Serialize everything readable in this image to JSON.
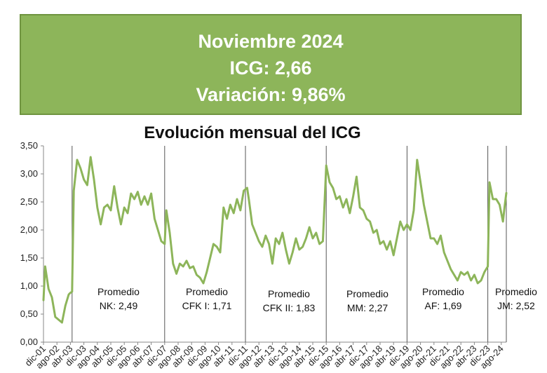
{
  "banner": {
    "line1": "Noviembre 2024",
    "line2": "ICG: 2,66",
    "line3": "Variación: 9,86%"
  },
  "colors": {
    "banner_bg": "#8db55a",
    "line": "#8db55a"
  },
  "chart_data": {
    "type": "line",
    "title": "Evolución mensual del ICG",
    "xlabel": "",
    "ylabel": "",
    "ylim": [
      0,
      3.5
    ],
    "grid": "vertical separators only",
    "y_ticks": [
      "0,00",
      "0,50",
      "1,00",
      "1,50",
      "2,00",
      "2,50",
      "3,00",
      "3,50"
    ],
    "x_range": [
      "2001-12",
      "2024-11"
    ],
    "x_tick_labels": [
      "dic-01",
      "ago-02",
      "abr-03",
      "dic-03",
      "ago-04",
      "abr-05",
      "dic-05",
      "ago-06",
      "abr-07",
      "dic-07",
      "ago-08",
      "abr-09",
      "dic-09",
      "ago-10",
      "abr-11",
      "dic-11",
      "ago-12",
      "abr-13",
      "dic-13",
      "ago-14",
      "abr-15",
      "dic-15",
      "ago-16",
      "abr-17",
      "dic-17",
      "ago-18",
      "abr-19",
      "dic-19",
      "ago-20",
      "abr-21",
      "dic-21",
      "ago-22",
      "abr-23",
      "dic-23",
      "ago-24"
    ],
    "separators": [
      "2003-05",
      "2007-12",
      "2011-12",
      "2015-12",
      "2019-12",
      "2023-12"
    ],
    "series": [
      {
        "values_keypoints": [
          [
            "2001-12",
            0.75
          ],
          [
            "2002-01",
            1.35
          ],
          [
            "2002-03",
            0.95
          ],
          [
            "2002-05",
            0.8
          ],
          [
            "2002-07",
            0.45
          ],
          [
            "2002-09",
            0.4
          ],
          [
            "2002-11",
            0.35
          ],
          [
            "2003-01",
            0.65
          ],
          [
            "2003-03",
            0.85
          ],
          [
            "2003-04",
            0.88
          ],
          [
            "2003-05",
            0.9
          ],
          [
            "2003-06",
            2.7
          ],
          [
            "2003-08",
            3.25
          ],
          [
            "2003-10",
            3.1
          ],
          [
            "2003-12",
            2.9
          ],
          [
            "2004-02",
            2.8
          ],
          [
            "2004-04",
            3.3
          ],
          [
            "2004-06",
            2.9
          ],
          [
            "2004-08",
            2.4
          ],
          [
            "2004-10",
            2.1
          ],
          [
            "2004-12",
            2.4
          ],
          [
            "2005-02",
            2.45
          ],
          [
            "2005-04",
            2.35
          ],
          [
            "2005-06",
            2.78
          ],
          [
            "2005-08",
            2.4
          ],
          [
            "2005-10",
            2.1
          ],
          [
            "2005-12",
            2.4
          ],
          [
            "2006-02",
            2.3
          ],
          [
            "2006-04",
            2.65
          ],
          [
            "2006-06",
            2.55
          ],
          [
            "2006-08",
            2.68
          ],
          [
            "2006-10",
            2.45
          ],
          [
            "2006-12",
            2.6
          ],
          [
            "2007-02",
            2.45
          ],
          [
            "2007-04",
            2.65
          ],
          [
            "2007-06",
            2.2
          ],
          [
            "2007-08",
            2.0
          ],
          [
            "2007-10",
            1.8
          ],
          [
            "2007-12",
            1.75
          ],
          [
            "2008-01",
            2.35
          ],
          [
            "2008-03",
            1.95
          ],
          [
            "2008-05",
            1.4
          ],
          [
            "2008-07",
            1.22
          ],
          [
            "2008-09",
            1.4
          ],
          [
            "2008-11",
            1.35
          ],
          [
            "2009-01",
            1.45
          ],
          [
            "2009-03",
            1.32
          ],
          [
            "2009-05",
            1.35
          ],
          [
            "2009-07",
            1.2
          ],
          [
            "2009-09",
            1.15
          ],
          [
            "2009-11",
            1.05
          ],
          [
            "2010-01",
            1.25
          ],
          [
            "2010-03",
            1.5
          ],
          [
            "2010-05",
            1.75
          ],
          [
            "2010-07",
            1.7
          ],
          [
            "2010-09",
            1.6
          ],
          [
            "2010-11",
            2.4
          ],
          [
            "2011-01",
            2.2
          ],
          [
            "2011-03",
            2.45
          ],
          [
            "2011-05",
            2.3
          ],
          [
            "2011-07",
            2.55
          ],
          [
            "2011-09",
            2.35
          ],
          [
            "2011-11",
            2.7
          ],
          [
            "2012-01",
            2.75
          ],
          [
            "2012-02",
            2.55
          ],
          [
            "2012-04",
            2.1
          ],
          [
            "2012-06",
            1.95
          ],
          [
            "2012-08",
            1.8
          ],
          [
            "2012-10",
            1.7
          ],
          [
            "2012-12",
            1.9
          ],
          [
            "2013-02",
            1.75
          ],
          [
            "2013-04",
            1.4
          ],
          [
            "2013-06",
            1.85
          ],
          [
            "2013-08",
            1.75
          ],
          [
            "2013-10",
            1.95
          ],
          [
            "2013-12",
            1.65
          ],
          [
            "2014-02",
            1.4
          ],
          [
            "2014-04",
            1.6
          ],
          [
            "2014-06",
            1.85
          ],
          [
            "2014-08",
            1.65
          ],
          [
            "2014-10",
            1.7
          ],
          [
            "2014-12",
            1.85
          ],
          [
            "2015-02",
            2.05
          ],
          [
            "2015-04",
            1.85
          ],
          [
            "2015-06",
            1.95
          ],
          [
            "2015-08",
            1.75
          ],
          [
            "2015-10",
            1.8
          ],
          [
            "2015-12",
            3.15
          ],
          [
            "2016-02",
            2.85
          ],
          [
            "2016-04",
            2.75
          ],
          [
            "2016-06",
            2.55
          ],
          [
            "2016-08",
            2.6
          ],
          [
            "2016-10",
            2.4
          ],
          [
            "2016-12",
            2.55
          ],
          [
            "2017-02",
            2.3
          ],
          [
            "2017-04",
            2.6
          ],
          [
            "2017-06",
            2.95
          ],
          [
            "2017-08",
            2.4
          ],
          [
            "2017-10",
            2.35
          ],
          [
            "2017-12",
            2.2
          ],
          [
            "2018-02",
            2.15
          ],
          [
            "2018-04",
            1.95
          ],
          [
            "2018-06",
            2.0
          ],
          [
            "2018-08",
            1.75
          ],
          [
            "2018-10",
            1.8
          ],
          [
            "2018-12",
            1.65
          ],
          [
            "2019-02",
            1.8
          ],
          [
            "2019-04",
            1.55
          ],
          [
            "2019-06",
            1.85
          ],
          [
            "2019-08",
            2.15
          ],
          [
            "2019-10",
            2.0
          ],
          [
            "2019-12",
            2.1
          ],
          [
            "2020-02",
            2.0
          ],
          [
            "2020-04",
            2.35
          ],
          [
            "2020-06",
            3.25
          ],
          [
            "2020-08",
            2.85
          ],
          [
            "2020-10",
            2.45
          ],
          [
            "2020-12",
            2.15
          ],
          [
            "2021-02",
            1.85
          ],
          [
            "2021-04",
            1.85
          ],
          [
            "2021-06",
            1.75
          ],
          [
            "2021-08",
            1.9
          ],
          [
            "2021-10",
            1.6
          ],
          [
            "2021-12",
            1.45
          ],
          [
            "2022-02",
            1.3
          ],
          [
            "2022-04",
            1.2
          ],
          [
            "2022-06",
            1.1
          ],
          [
            "2022-08",
            1.25
          ],
          [
            "2022-10",
            1.2
          ],
          [
            "2022-12",
            1.25
          ],
          [
            "2023-02",
            1.1
          ],
          [
            "2023-04",
            1.2
          ],
          [
            "2023-06",
            1.05
          ],
          [
            "2023-08",
            1.1
          ],
          [
            "2023-10",
            1.25
          ],
          [
            "2023-12",
            1.35
          ],
          [
            "2024-01",
            2.85
          ],
          [
            "2024-03",
            2.55
          ],
          [
            "2024-05",
            2.55
          ],
          [
            "2024-07",
            2.45
          ],
          [
            "2024-09",
            2.15
          ],
          [
            "2024-10",
            2.42
          ],
          [
            "2024-11",
            2.66
          ]
        ]
      }
    ],
    "annotations": [
      {
        "line1": "Promedio",
        "line2": "NK: 2,49"
      },
      {
        "line1": "Promedio",
        "line2": "CFK I: 1,71"
      },
      {
        "line1": "Promedio",
        "line2": "CFK II: 1,83"
      },
      {
        "line1": "Promedio",
        "line2": "MM: 2,27"
      },
      {
        "line1": "Promedio",
        "line2": "AF: 1,69"
      },
      {
        "line1": "Promedio",
        "line2": "JM: 2,52"
      }
    ]
  }
}
